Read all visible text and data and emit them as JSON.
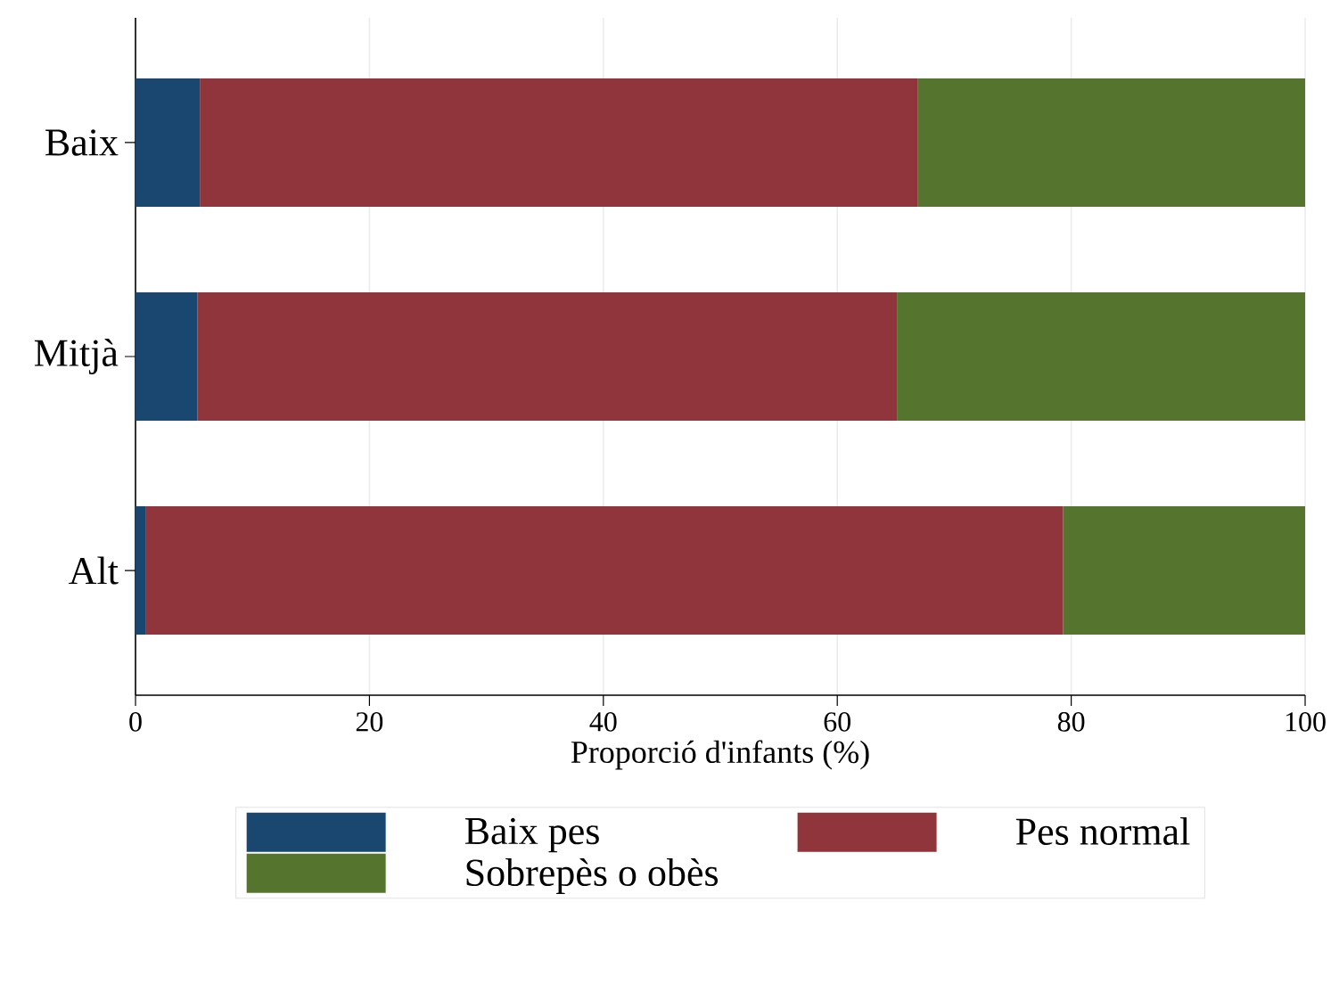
{
  "chart_data": {
    "type": "bar",
    "orientation": "horizontal",
    "stacked": true,
    "xlabel": "Proporció d'infants (%)",
    "categories": [
      "Baix",
      "Mitjà",
      "Alt"
    ],
    "series": [
      {
        "name": "Baix pes",
        "color": "#1a476f",
        "values": [
          5.5,
          5.3,
          0.9
        ]
      },
      {
        "name": "Pes normal",
        "color": "#90353b",
        "values": [
          61.4,
          59.8,
          78.4
        ]
      },
      {
        "name": "Sobrepès o obès",
        "color": "#55752f",
        "values": [
          33.1,
          34.9,
          20.7
        ]
      }
    ],
    "xlim": [
      0,
      100
    ],
    "xticks": [
      0,
      20,
      40,
      60,
      80,
      100
    ],
    "grid": "x",
    "legend": "bottom"
  }
}
